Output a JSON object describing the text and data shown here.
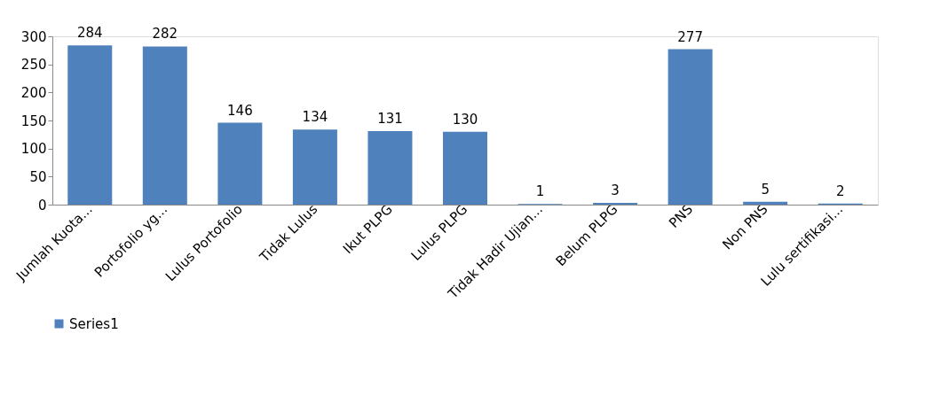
{
  "chart_data": {
    "type": "bar",
    "categories": [
      "Jumlah Kuota...",
      "Portofolio yg...",
      "Lulus Portofolio",
      "Tidak Lulus",
      "Ikut PLPG",
      "Lulus PLPG",
      "Tidak Hadir Ujian...",
      "Belum PLPG",
      "PNS",
      "Non PNS",
      "Lulu sertifikasi..."
    ],
    "series": [
      {
        "name": "Series1",
        "color": "#4f81bd",
        "values": [
          284,
          282,
          146,
          134,
          131,
          130,
          1,
          3,
          277,
          5,
          2
        ]
      }
    ],
    "ylim": [
      0,
      300
    ],
    "yticks": [
      0,
      50,
      100,
      150,
      200,
      250,
      300
    ],
    "data_labels": true,
    "grid": false,
    "legend": "bottom"
  }
}
